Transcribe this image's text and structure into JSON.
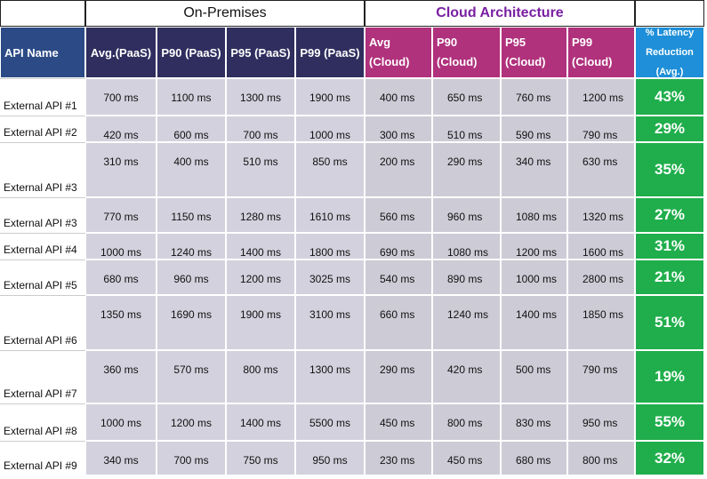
{
  "header": {
    "groups": [
      "On-Premises",
      "Cloud Architecture"
    ],
    "columns": [
      "API Name",
      "Avg.(PaaS)",
      "P90 (PaaS)",
      "P95 (PaaS)",
      "P99 (PaaS)",
      "Avg (Cloud)",
      "P90 (Cloud)",
      "P95 (Cloud)",
      "P99 (Cloud)",
      "% Latency Reduction (Avg.)"
    ]
  },
  "table": {
    "rows": [
      [
        "External API #1",
        "700 ms",
        "1100 ms",
        "1300 ms",
        "1900 ms",
        "400 ms",
        "650 ms",
        "760 ms",
        "1200 ms",
        "43%"
      ],
      [
        "External API #2",
        "420 ms",
        "600 ms",
        "700 ms",
        "1000 ms",
        "300 ms",
        "510 ms",
        "590 ms",
        "790 ms",
        "29%"
      ],
      [
        "External API #3",
        "310 ms",
        "400 ms",
        "510 ms",
        "850 ms",
        "200 ms",
        "290 ms",
        "340 ms",
        "630 ms",
        "35%"
      ],
      [
        "External API #3",
        "770 ms",
        "1150 ms",
        "1280 ms",
        "1610 ms",
        "560 ms",
        "960 ms",
        "1080 ms",
        "1320 ms",
        "27%"
      ],
      [
        "External API #4",
        "1000 ms",
        "1240 ms",
        "1400 ms",
        "1800 ms",
        "690 ms",
        "1080 ms",
        "1200 ms",
        "1600 ms",
        "31%"
      ],
      [
        "External API #5",
        "680 ms",
        "960 ms",
        "1200 ms",
        "3025 ms",
        "540 ms",
        "890 ms",
        "1000 ms",
        "2800 ms",
        "21%"
      ],
      [
        "External API #6",
        "1350 ms",
        "1690 ms",
        "1900 ms",
        "3100 ms",
        "660 ms",
        "1240 ms",
        "1400 ms",
        "1850 ms",
        "51%"
      ],
      [
        "External API #7",
        "360 ms",
        "570 ms",
        "800 ms",
        "1300 ms",
        "290 ms",
        "420 ms",
        "500 ms",
        "790 ms",
        "19%"
      ],
      [
        "External API #8",
        "1000 ms",
        "1200 ms",
        "1400 ms",
        "5500 ms",
        "450 ms",
        "800 ms",
        "830 ms",
        "950 ms",
        "55%"
      ],
      [
        "External API #9",
        "340 ms",
        "700 ms",
        "750 ms",
        "950 ms",
        "230 ms",
        "450 ms",
        "680 ms",
        "800 ms",
        "32%"
      ]
    ]
  }
}
